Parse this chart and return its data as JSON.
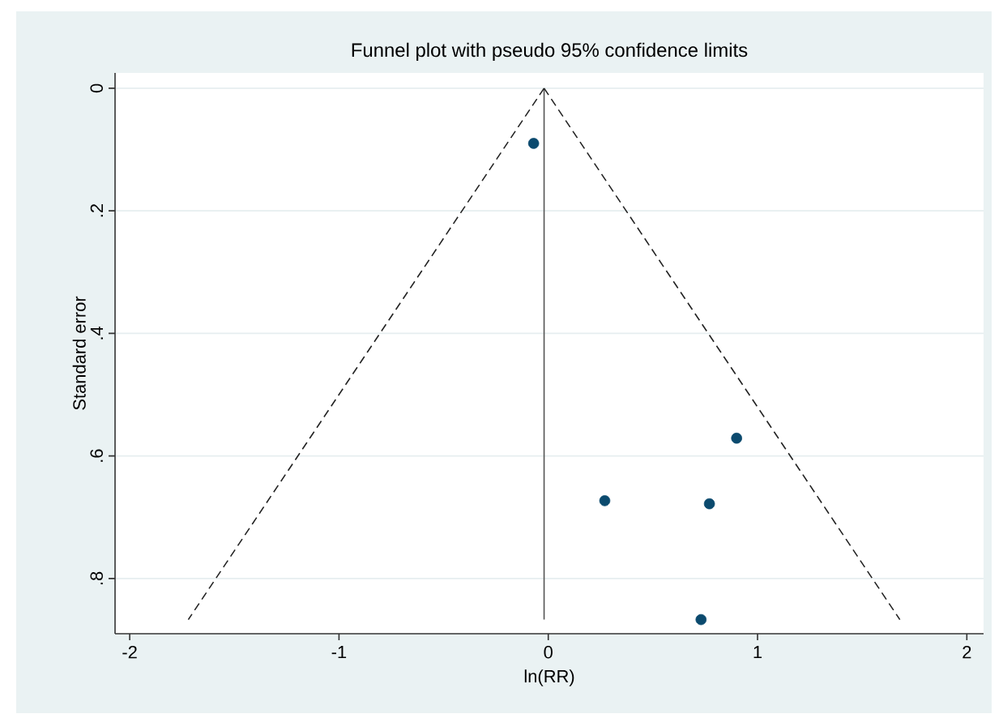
{
  "chart_data": {
    "type": "scatter",
    "title": "Funnel plot with pseudo 95% confidence limits",
    "xlabel": "ln(RR)",
    "ylabel": "Standard error",
    "series": [
      {
        "color": "#0b4a6e",
        "marker": "circle",
        "x": [
          -0.07,
          0.9,
          0.27,
          0.77,
          0.73
        ],
        "values": [
          0.09,
          0.571,
          0.673,
          0.678,
          0.867
        ]
      },
      {
        "type": "line",
        "color": "#555555",
        "line_style": "solid",
        "marker": "none",
        "x": [
          -0.02,
          -0.02
        ],
        "values": [
          0,
          0.867
        ]
      },
      {
        "type": "line",
        "color": "#222222",
        "line_style": "dashed",
        "marker": "none",
        "x": [
          -0.02,
          -1.72
        ],
        "values": [
          0,
          0.867
        ]
      },
      {
        "type": "line",
        "color": "#222222",
        "line_style": "dashed",
        "marker": "none",
        "x": [
          -0.02,
          1.68
        ],
        "values": [
          0,
          0.867
        ]
      }
    ],
    "xlim": [
      -2.07,
      2.08
    ],
    "ylim": [
      0.89,
      -0.025
    ],
    "xticks": [
      -2,
      -1,
      0,
      1,
      2
    ],
    "yticks": [
      {
        "value": 0,
        "label": "0"
      },
      {
        "value": 0.2,
        "label": ".2"
      },
      {
        "value": 0.4,
        "label": ".4"
      },
      {
        "value": 0.6,
        "label": ".6"
      },
      {
        "value": 0.8,
        "label": ".8"
      }
    ],
    "grid": "y"
  }
}
